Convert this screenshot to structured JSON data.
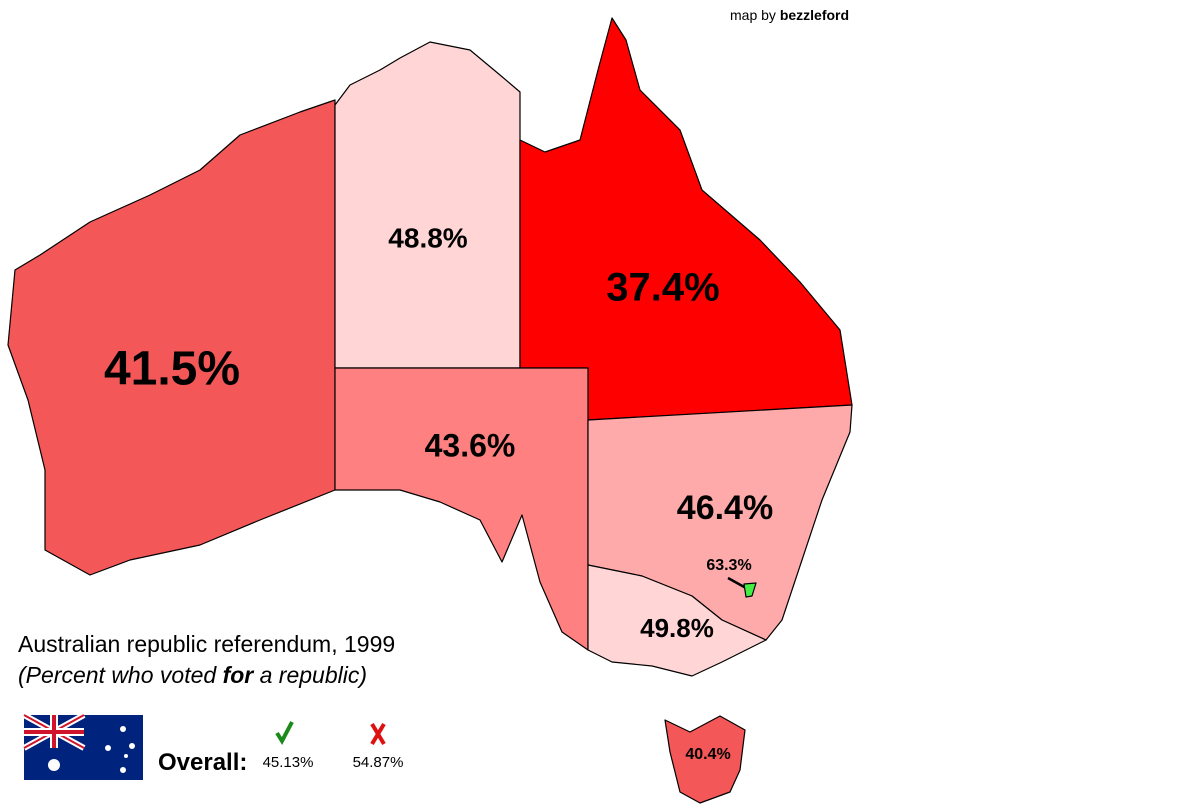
{
  "credit": {
    "prefix": "map by ",
    "author": "bezzleford"
  },
  "title": "Australian republic referendum, 1999",
  "subtitle": {
    "before": "(Percent who voted ",
    "emphasis": "for",
    "after": " a republic)"
  },
  "overall": {
    "label": "Overall:",
    "yes": "45.13%",
    "no": "54.87%"
  },
  "regions": [
    {
      "label": "41.5%",
      "color": "#f45757"
    },
    {
      "label": "48.8%",
      "color": "#ffd5d5"
    },
    {
      "label": "37.4%",
      "color": "#ff0000"
    },
    {
      "label": "43.6%",
      "color": "#ff8080"
    },
    {
      "label": "46.4%",
      "color": "#ffaaaa"
    },
    {
      "label": "49.8%",
      "color": "#ffd5d5"
    },
    {
      "label": "40.4%",
      "color": "#f45757"
    },
    {
      "label": "63.3%",
      "color": "#44ee44"
    }
  ]
}
